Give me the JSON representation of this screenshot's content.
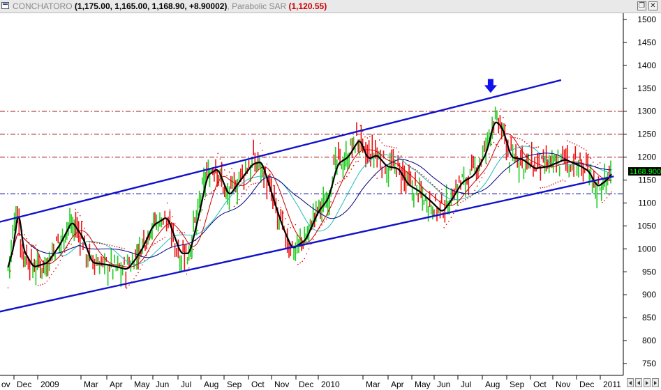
{
  "window": {
    "symbol": "CONCHATORO",
    "ohlc": "(1,175.00, 1,165.00, 1,168.90, +8.90002)",
    "indicator_name": "Parabolic SAR",
    "indicator_value": "(1,120.55)",
    "restore_icon": "restore-icon",
    "close_icon": "close-icon"
  },
  "colors": {
    "up_bar": "#22cc22",
    "down_bar": "#ee1111",
    "trend_channel": "#1111cc",
    "smooth_line": "#000000",
    "ma_red": "#cc0000",
    "ma_navy": "#000080",
    "ma_cyan": "#22bbbb",
    "sar_dots": "#dd0000",
    "resistance_lines": "#990000",
    "support_line": "#000099",
    "last_price_tag": "#000000",
    "last_price_text": "#00ff00",
    "arrow": "#1111ee"
  },
  "chart_data": {
    "type": "candlestick",
    "title": "CONCHATORO",
    "x_tick_labels": [
      "ov",
      "Dec",
      "2009",
      "Mar",
      "Apr",
      "May",
      "Jun",
      "Jul",
      "Aug",
      "Sep",
      "Oct",
      "Nov",
      "Dec",
      "2010",
      "Mar",
      "Apr",
      "May",
      "Jun",
      "Jul",
      "Aug",
      "Sep",
      "Oct",
      "Nov",
      "Dec",
      "2011"
    ],
    "y_tick_labels": [
      "1500",
      "1450",
      "1400",
      "1350",
      "1300",
      "1250",
      "1200",
      "1150",
      "1100",
      "1050",
      "1000",
      "950",
      "900",
      "850",
      "800",
      "750"
    ],
    "ylim": [
      720,
      1520
    ],
    "last_price": "1168.900",
    "price_path": [
      [
        "2008-11-20",
        960
      ],
      [
        "2008-12-01",
        1095
      ],
      [
        "2008-12-06",
        1000
      ],
      [
        "2008-12-20",
        960
      ],
      [
        "2009-01-08",
        970
      ],
      [
        "2009-01-25",
        1010
      ],
      [
        "2009-02-10",
        1060
      ],
      [
        "2009-02-25",
        1025
      ],
      [
        "2009-03-08",
        970
      ],
      [
        "2009-03-28",
        965
      ],
      [
        "2009-04-20",
        955
      ],
      [
        "2009-05-10",
        1000
      ],
      [
        "2009-05-25",
        1050
      ],
      [
        "2009-06-12",
        1070
      ],
      [
        "2009-06-28",
        990
      ],
      [
        "2009-07-10",
        990
      ],
      [
        "2009-07-22",
        1070
      ],
      [
        "2009-08-03",
        1160
      ],
      [
        "2009-08-17",
        1175
      ],
      [
        "2009-09-01",
        1115
      ],
      [
        "2009-09-15",
        1150
      ],
      [
        "2009-09-30",
        1185
      ],
      [
        "2009-10-12",
        1190
      ],
      [
        "2009-10-25",
        1125
      ],
      [
        "2009-11-08",
        1050
      ],
      [
        "2009-11-20",
        1000
      ],
      [
        "2009-12-08",
        1020
      ],
      [
        "2009-12-25",
        1080
      ],
      [
        "2010-01-08",
        1110
      ],
      [
        "2010-01-20",
        1185
      ],
      [
        "2010-02-03",
        1200
      ],
      [
        "2010-02-18",
        1240
      ],
      [
        "2010-03-01",
        1195
      ],
      [
        "2010-03-12",
        1205
      ],
      [
        "2010-03-24",
        1180
      ],
      [
        "2010-04-08",
        1175
      ],
      [
        "2010-04-20",
        1140
      ],
      [
        "2010-05-05",
        1125
      ],
      [
        "2010-05-20",
        1105
      ],
      [
        "2010-06-05",
        1080
      ],
      [
        "2010-06-16",
        1105
      ],
      [
        "2010-06-30",
        1145
      ],
      [
        "2010-07-15",
        1160
      ],
      [
        "2010-07-31",
        1210
      ],
      [
        "2010-08-10",
        1280
      ],
      [
        "2010-08-20",
        1265
      ],
      [
        "2010-08-31",
        1200
      ],
      [
        "2010-09-15",
        1195
      ],
      [
        "2010-09-30",
        1175
      ],
      [
        "2010-10-20",
        1180
      ],
      [
        "2010-11-10",
        1195
      ],
      [
        "2010-11-30",
        1180
      ],
      [
        "2010-12-10",
        1170
      ],
      [
        "2010-12-22",
        1135
      ],
      [
        "2011-01-03",
        1150
      ],
      [
        "2011-01-12",
        1168.9
      ]
    ],
    "channel": {
      "upper": [
        [
          "2008-11-01",
          1055
        ],
        [
          "2010-11-08",
          1368
        ]
      ],
      "lower": [
        [
          "2008-11-01",
          860
        ],
        [
          "2011-01-15",
          1158
        ]
      ]
    },
    "horizontal_levels": [
      1300,
      1250,
      1200,
      1120
    ],
    "arrow_marker": {
      "date": "2010-08-08",
      "price": 1340
    }
  }
}
